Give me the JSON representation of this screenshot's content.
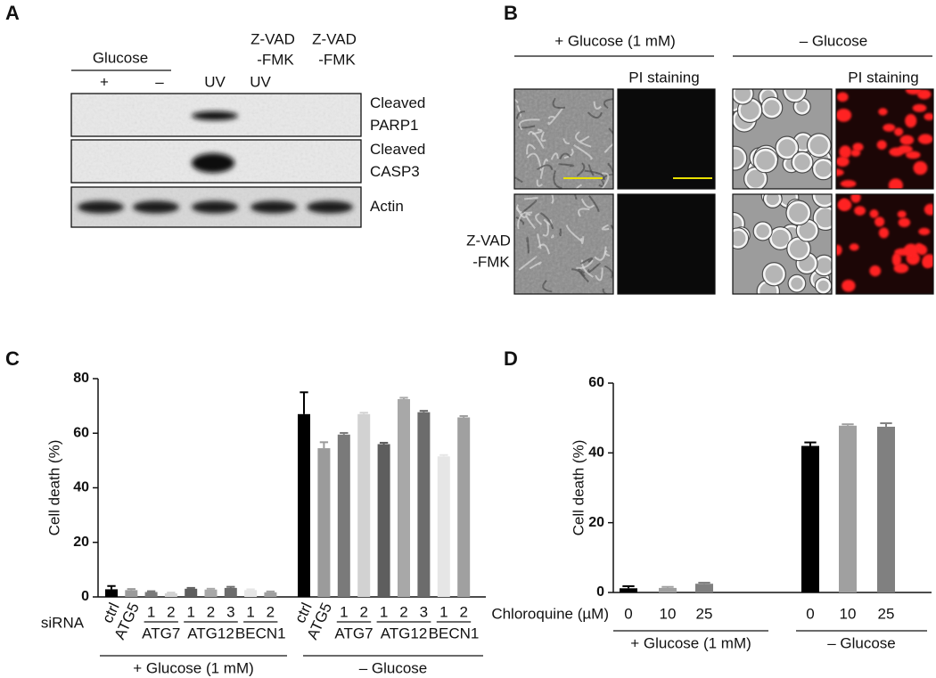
{
  "panel_labels": [
    "A",
    "B",
    "C",
    "D"
  ],
  "panel_a": {
    "glucose_label": "Glucose",
    "lane_headers": [
      "+",
      "–",
      "UV",
      "UV"
    ],
    "treatment_labels": [
      [
        "Z-VAD",
        "-FMK"
      ],
      [
        "Z-VAD",
        "-FMK"
      ]
    ],
    "blot_labels": [
      [
        "Cleaved",
        "PARP1"
      ],
      [
        "Cleaved",
        "CASP3"
      ],
      [
        "Actin"
      ]
    ]
  },
  "panel_b": {
    "conditions": [
      "+ Glucose (1 mM)",
      "– Glucose"
    ],
    "stain_labels": [
      "PI staining",
      "PI staining"
    ],
    "row_label": [
      "Z-VAD",
      "-FMK"
    ]
  },
  "chart_data": [
    {
      "type": "bar",
      "ylabel": "Cell death (%)",
      "xlabel": "siRNA",
      "ylim": [
        0,
        80
      ],
      "yticks": [
        0,
        20,
        40,
        60,
        80
      ],
      "categories": [
        "ctrl",
        "ATG5",
        "1",
        "2",
        "1",
        "2",
        "3",
        "1",
        "2",
        "ctrl",
        "ATG5",
        "1",
        "2",
        "1",
        "2",
        "3",
        "1",
        "2"
      ],
      "values": [
        2.8,
        2.5,
        1.8,
        1.3,
        3,
        2.7,
        3.3,
        2.5,
        1.7,
        67,
        54.5,
        59.5,
        67,
        56,
        72.5,
        67.7,
        51.5,
        65.8
      ],
      "errors": [
        1.2,
        0.4,
        0.3,
        0.3,
        0.3,
        0.3,
        0.4,
        0.3,
        0.3,
        8,
        2.2,
        0.6,
        0.5,
        0.5,
        0.5,
        0.5,
        0.5,
        0.5
      ],
      "colors": [
        "#000000",
        "#9b9b9b",
        "#7a7a7a",
        "#d2d2d2",
        "#5e5e5e",
        "#a8a8a8",
        "#6c6c6c",
        "#e6e6e6",
        "#a0a0a0",
        "#000000",
        "#9b9b9b",
        "#7a7a7a",
        "#d2d2d2",
        "#5e5e5e",
        "#a8a8a8",
        "#6c6c6c",
        "#e6e6e6",
        "#a0a0a0"
      ],
      "subgroups": [
        "ATG7",
        "ATG12",
        "BECN1",
        "ATG7",
        "ATG12",
        "BECN1"
      ],
      "groups": [
        "+ Glucose (1 mM)",
        "– Glucose"
      ]
    },
    {
      "type": "bar",
      "ylabel": "Cell death (%)",
      "xlabel": "Chloroquine (µM)",
      "ylim": [
        0,
        60
      ],
      "yticks": [
        0,
        20,
        40,
        60
      ],
      "categories": [
        "0",
        "10",
        "25",
        "0",
        "10",
        "25"
      ],
      "values": [
        1.2,
        1.3,
        2.5,
        42,
        47.8,
        47.5
      ],
      "errors": [
        0.6,
        0.3,
        0.3,
        1,
        0.4,
        1
      ],
      "colors": [
        "#000000",
        "#a0a0a0",
        "#808080",
        "#000000",
        "#a0a0a0",
        "#808080"
      ],
      "groups": [
        "+ Glucose (1 mM)",
        "– Glucose"
      ]
    }
  ]
}
